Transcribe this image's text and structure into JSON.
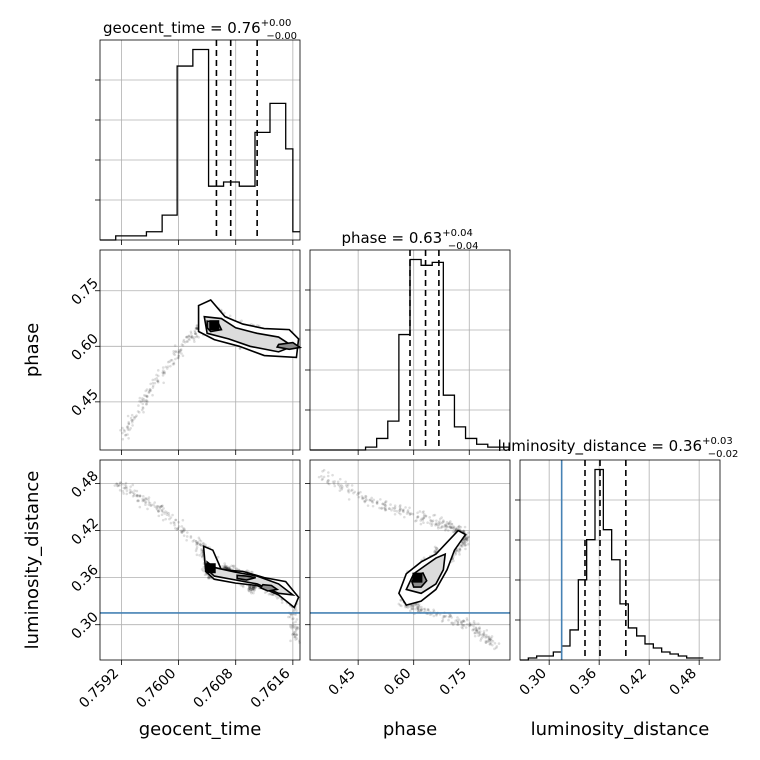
{
  "chart_data": {
    "type": "corner",
    "parameters": [
      "geocent_time",
      "phase",
      "luminosity_distance"
    ],
    "truth": {
      "luminosity_distance": 0.315
    },
    "colors": {
      "truth": "#4682b4",
      "histogram": "#000000",
      "grid": "#b0b0b0"
    },
    "grid": true,
    "diagonal": [
      {
        "param": "geocent_time",
        "title": "geocent_time = 0.76",
        "err_plus": "+0.00",
        "err_minus": "−0.00",
        "xlim": [
          0.7589,
          0.7617
        ],
        "quantiles": [
          0.76053,
          0.76073,
          0.7611
        ],
        "bins": [
          0.7589,
          0.75912,
          0.75933,
          0.75955,
          0.75977,
          0.75998,
          0.7602,
          0.76042,
          0.76063,
          0.76085,
          0.76107,
          0.76128,
          0.7615,
          0.7616,
          0.7617
        ],
        "counts": [
          0,
          1,
          1,
          2,
          6,
          42,
          46,
          13,
          14,
          13,
          26,
          33,
          22,
          2
        ]
      },
      {
        "param": "phase",
        "title": "phase = 0.63",
        "err_plus": "+0.04",
        "err_minus": "−0.04",
        "xlim": [
          0.32,
          0.86
        ],
        "quantiles": [
          0.59,
          0.632,
          0.668
        ],
        "bins": [
          0.32,
          0.35,
          0.38,
          0.41,
          0.44,
          0.47,
          0.5,
          0.53,
          0.56,
          0.59,
          0.62,
          0.65,
          0.68,
          0.71,
          0.74,
          0.77,
          0.8,
          0.83,
          0.86
        ],
        "counts": [
          0,
          0,
          0,
          0,
          0,
          1,
          4,
          10,
          40,
          66,
          64,
          65,
          19,
          8,
          4,
          2,
          1,
          1
        ]
      },
      {
        "param": "luminosity_distance",
        "title": "luminosity_distance = 0.36",
        "err_plus": "+0.03",
        "err_minus": "−0.02",
        "xlim": [
          0.265,
          0.505
        ],
        "quantiles": [
          0.343,
          0.361,
          0.392
        ],
        "bins": [
          0.265,
          0.275,
          0.285,
          0.295,
          0.305,
          0.315,
          0.325,
          0.335,
          0.345,
          0.355,
          0.365,
          0.375,
          0.385,
          0.395,
          0.405,
          0.415,
          0.425,
          0.435,
          0.445,
          0.455,
          0.465,
          0.475,
          0.485
        ],
        "counts": [
          0,
          1,
          2,
          2,
          4,
          7,
          15,
          40,
          60,
          95,
          65,
          50,
          28,
          16,
          12,
          8,
          6,
          4,
          3,
          2,
          1,
          1
        ]
      }
    ],
    "off_diagonal": [
      {
        "x": "geocent_time",
        "y": "phase",
        "xlim": [
          0.7589,
          0.7617
        ],
        "ylim": [
          0.32,
          0.86
        ],
        "ridge": [
          [
            0.7592,
            0.35
          ],
          [
            0.75965,
            0.5
          ],
          [
            0.7602,
            0.63
          ],
          [
            0.7605,
            0.7
          ],
          [
            0.7607,
            0.66
          ],
          [
            0.7609,
            0.63
          ],
          [
            0.7612,
            0.61
          ],
          [
            0.7615,
            0.59
          ],
          [
            0.7616,
            0.6
          ]
        ],
        "contours": [
          {
            "level": "outer",
            "points": [
              [
                0.76028,
                0.71
              ],
              [
                0.76045,
                0.725
              ],
              [
                0.76065,
                0.68
              ],
              [
                0.7609,
                0.66
              ],
              [
                0.7612,
                0.648
              ],
              [
                0.76155,
                0.645
              ],
              [
                0.76168,
                0.62
              ],
              [
                0.76165,
                0.57
              ],
              [
                0.7612,
                0.575
              ],
              [
                0.76085,
                0.6
              ],
              [
                0.7605,
                0.618
              ],
              [
                0.76028,
                0.64
              ]
            ]
          },
          {
            "level": "mid",
            "points": [
              [
                0.76036,
                0.68
              ],
              [
                0.7606,
                0.675
              ],
              [
                0.7608,
                0.65
              ],
              [
                0.7611,
                0.635
              ],
              [
                0.7614,
                0.625
              ],
              [
                0.7616,
                0.6
              ],
              [
                0.7614,
                0.585
              ],
              [
                0.761,
                0.6
              ],
              [
                0.7607,
                0.62
              ],
              [
                0.7604,
                0.635
              ]
            ]
          },
          {
            "level": "inner",
            "points": [
              [
                0.7604,
                0.668
              ],
              [
                0.76055,
                0.665
              ],
              [
                0.7606,
                0.645
              ],
              [
                0.76045,
                0.64
              ],
              [
                0.7604,
                0.65
              ]
            ]
          },
          {
            "level": "inner",
            "points": [
              [
                0.7614,
                0.605
              ],
              [
                0.7616,
                0.61
              ],
              [
                0.7617,
                0.597
              ],
              [
                0.76155,
                0.592
              ],
              [
                0.76138,
                0.598
              ]
            ]
          }
        ],
        "peak": [
          0.7605,
          0.657
        ],
        "truth_h": null
      },
      {
        "x": "geocent_time",
        "y": "luminosity_distance",
        "xlim": [
          0.7589,
          0.7617
        ],
        "ylim": [
          0.255,
          0.51
        ],
        "ridge": [
          [
            0.7591,
            0.48
          ],
          [
            0.7597,
            0.45
          ],
          [
            0.7603,
            0.4
          ],
          [
            0.7605,
            0.375
          ],
          [
            0.7609,
            0.36
          ],
          [
            0.7613,
            0.345
          ],
          [
            0.7616,
            0.33
          ],
          [
            0.76165,
            0.28
          ]
        ],
        "contours": [
          {
            "level": "outer",
            "points": [
              [
                0.76035,
                0.4
              ],
              [
                0.76048,
                0.395
              ],
              [
                0.7606,
                0.37
              ],
              [
                0.7609,
                0.368
              ],
              [
                0.7612,
                0.36
              ],
              [
                0.7615,
                0.355
              ],
              [
                0.76168,
                0.335
              ],
              [
                0.76162,
                0.322
              ],
              [
                0.7614,
                0.338
              ],
              [
                0.7611,
                0.35
              ],
              [
                0.7608,
                0.353
              ],
              [
                0.7605,
                0.358
              ],
              [
                0.76038,
                0.368
              ]
            ]
          },
          {
            "level": "mid",
            "points": [
              [
                0.7604,
                0.38
              ],
              [
                0.7605,
                0.373
              ],
              [
                0.7608,
                0.367
              ],
              [
                0.7611,
                0.362
              ],
              [
                0.7614,
                0.352
              ],
              [
                0.7616,
                0.338
              ],
              [
                0.7614,
                0.34
              ],
              [
                0.7611,
                0.352
              ],
              [
                0.7608,
                0.357
              ],
              [
                0.7605,
                0.362
              ],
              [
                0.7604,
                0.37
              ]
            ]
          },
          {
            "level": "inner",
            "points": [
              [
                0.76082,
                0.363
              ],
              [
                0.76095,
                0.362
              ],
              [
                0.76108,
                0.36
              ],
              [
                0.76095,
                0.357
              ],
              [
                0.76082,
                0.359
              ]
            ]
          },
          {
            "level": "inner",
            "points": [
              [
                0.76118,
                0.351
              ],
              [
                0.7613,
                0.35
              ],
              [
                0.76138,
                0.345
              ],
              [
                0.76125,
                0.343
              ],
              [
                0.76115,
                0.347
              ]
            ]
          }
        ],
        "peak": [
          0.76045,
          0.372
        ],
        "truth_h": 0.315
      },
      {
        "x": "phase",
        "y": "luminosity_distance",
        "xlim": [
          0.32,
          0.86
        ],
        "ylim": [
          0.255,
          0.51
        ],
        "ridge": [
          [
            0.35,
            0.49
          ],
          [
            0.5,
            0.455
          ],
          [
            0.63,
            0.435
          ],
          [
            0.72,
            0.42
          ],
          [
            0.74,
            0.41
          ],
          [
            0.7,
            0.385
          ],
          [
            0.63,
            0.36
          ],
          [
            0.57,
            0.33
          ],
          [
            0.62,
            0.32
          ],
          [
            0.75,
            0.3
          ],
          [
            0.82,
            0.275
          ]
        ],
        "contours": [
          {
            "level": "outer",
            "points": [
              [
                0.56,
                0.34
              ],
              [
                0.58,
                0.365
              ],
              [
                0.62,
                0.38
              ],
              [
                0.66,
                0.39
              ],
              [
                0.69,
                0.405
              ],
              [
                0.72,
                0.42
              ],
              [
                0.74,
                0.415
              ],
              [
                0.71,
                0.395
              ],
              [
                0.69,
                0.37
              ],
              [
                0.66,
                0.345
              ],
              [
                0.62,
                0.33
              ],
              [
                0.58,
                0.325
              ]
            ]
          },
          {
            "level": "mid",
            "points": [
              [
                0.58,
                0.345
              ],
              [
                0.6,
                0.365
              ],
              [
                0.63,
                0.375
              ],
              [
                0.66,
                0.385
              ],
              [
                0.685,
                0.39
              ],
              [
                0.68,
                0.37
              ],
              [
                0.66,
                0.352
              ],
              [
                0.62,
                0.34
              ]
            ]
          },
          {
            "level": "inner",
            "points": [
              [
                0.595,
                0.355
              ],
              [
                0.605,
                0.363
              ],
              [
                0.625,
                0.366
              ],
              [
                0.635,
                0.356
              ],
              [
                0.62,
                0.348
              ],
              [
                0.6,
                0.348
              ]
            ]
          }
        ],
        "peak": [
          0.61,
          0.36
        ],
        "truth_h": 0.315
      }
    ],
    "ticks": {
      "geocent_time": {
        "values": [
          0.7592,
          0.76,
          0.7608,
          0.7616
        ],
        "labels": [
          "0.7592",
          "0.7600",
          "0.7608",
          "0.7616"
        ]
      },
      "phase_x": {
        "values": [
          0.45,
          0.6,
          0.75
        ],
        "labels": [
          "0.45",
          "0.60",
          "0.75"
        ]
      },
      "phase_y": {
        "values": [
          0.45,
          0.6,
          0.75
        ],
        "labels": [
          "0.45",
          "0.60",
          "0.75"
        ]
      },
      "luminosity_distance_x": {
        "values": [
          0.3,
          0.36,
          0.42,
          0.48
        ],
        "labels": [
          "0.30",
          "0.36",
          "0.42",
          "0.48"
        ]
      },
      "luminosity_distance_y": {
        "values": [
          0.3,
          0.36,
          0.42,
          0.48
        ],
        "labels": [
          "0.30",
          "0.36",
          "0.42",
          "0.48"
        ]
      }
    },
    "axis_labels": {
      "x": [
        "geocent_time",
        "phase",
        "luminosity_distance"
      ],
      "y": [
        "phase",
        "luminosity_distance"
      ]
    }
  }
}
